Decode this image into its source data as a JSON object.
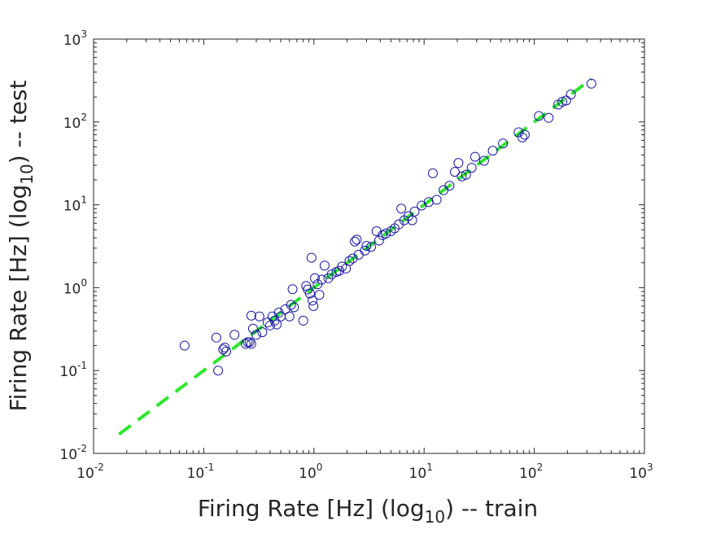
{
  "chart_data": {
    "type": "scatter",
    "xlabel": {
      "pre": "Firing Rate [Hz] (log",
      "sub": "10",
      "post": ") -- train"
    },
    "ylabel": {
      "pre": "Firing Rate [Hz] (log",
      "sub": "10",
      "post": ") -- test"
    },
    "x_scale": "log",
    "y_scale": "log",
    "xlim": [
      0.01,
      1000
    ],
    "ylim": [
      0.01,
      1000
    ],
    "x_ticks": [
      {
        "base": "10",
        "exp": "-2"
      },
      {
        "base": "10",
        "exp": "-1"
      },
      {
        "base": "10",
        "exp": "0"
      },
      {
        "base": "10",
        "exp": "1"
      },
      {
        "base": "10",
        "exp": "2"
      },
      {
        "base": "10",
        "exp": "3"
      }
    ],
    "y_ticks": [
      {
        "base": "10",
        "exp": "-2"
      },
      {
        "base": "10",
        "exp": "-1"
      },
      {
        "base": "10",
        "exp": "0"
      },
      {
        "base": "10",
        "exp": "1"
      },
      {
        "base": "10",
        "exp": "2"
      },
      {
        "base": "10",
        "exp": "3"
      }
    ],
    "grid": false,
    "colors": {
      "points": "#1a1aa0",
      "fit_line": "#2ee62e",
      "axis": "#262626"
    },
    "fit_line": {
      "style": "dashed",
      "x": [
        0.017,
        330
      ],
      "y": [
        0.017,
        330
      ]
    },
    "points": [
      [
        0.067,
        0.2
      ],
      [
        0.13,
        0.25
      ],
      [
        0.135,
        0.1
      ],
      [
        0.15,
        0.18
      ],
      [
        0.155,
        0.19
      ],
      [
        0.16,
        0.17
      ],
      [
        0.19,
        0.27
      ],
      [
        0.24,
        0.21
      ],
      [
        0.25,
        0.22
      ],
      [
        0.26,
        0.22
      ],
      [
        0.27,
        0.21
      ],
      [
        0.27,
        0.46
      ],
      [
        0.28,
        0.32
      ],
      [
        0.3,
        0.27
      ],
      [
        0.32,
        0.45
      ],
      [
        0.34,
        0.29
      ],
      [
        0.38,
        0.38
      ],
      [
        0.4,
        0.35
      ],
      [
        0.42,
        0.45
      ],
      [
        0.44,
        0.4
      ],
      [
        0.46,
        0.36
      ],
      [
        0.48,
        0.5
      ],
      [
        0.5,
        0.45
      ],
      [
        0.55,
        0.55
      ],
      [
        0.6,
        0.45
      ],
      [
        0.62,
        0.62
      ],
      [
        0.64,
        0.96
      ],
      [
        0.66,
        0.58
      ],
      [
        0.8,
        0.4
      ],
      [
        0.85,
        1.05
      ],
      [
        0.88,
        0.95
      ],
      [
        0.92,
        0.85
      ],
      [
        0.95,
        2.3
      ],
      [
        0.97,
        0.7
      ],
      [
        0.99,
        0.6
      ],
      [
        1.02,
        1.3
      ],
      [
        1.08,
        1.1
      ],
      [
        1.12,
        0.82
      ],
      [
        1.18,
        1.25
      ],
      [
        1.25,
        1.85
      ],
      [
        1.35,
        1.3
      ],
      [
        1.45,
        1.45
      ],
      [
        1.6,
        1.55
      ],
      [
        1.7,
        1.6
      ],
      [
        1.8,
        1.8
      ],
      [
        1.95,
        1.7
      ],
      [
        2.1,
        2.1
      ],
      [
        2.25,
        2.25
      ],
      [
        2.35,
        3.6
      ],
      [
        2.45,
        3.8
      ],
      [
        2.55,
        2.5
      ],
      [
        2.9,
        2.8
      ],
      [
        3.0,
        3.2
      ],
      [
        3.3,
        3.1
      ],
      [
        3.7,
        4.8
      ],
      [
        3.9,
        3.7
      ],
      [
        4.2,
        4.3
      ],
      [
        4.5,
        4.5
      ],
      [
        5.0,
        4.8
      ],
      [
        5.4,
        5.2
      ],
      [
        5.9,
        5.8
      ],
      [
        6.2,
        9.0
      ],
      [
        6.6,
        6.5
      ],
      [
        7.2,
        7.3
      ],
      [
        7.8,
        6.5
      ],
      [
        8.2,
        8.3
      ],
      [
        9.5,
        9.8
      ],
      [
        11.0,
        10.8
      ],
      [
        12.0,
        24.0
      ],
      [
        13.0,
        11.5
      ],
      [
        15.0,
        15.0
      ],
      [
        17.0,
        17.0
      ],
      [
        19.0,
        25.0
      ],
      [
        20.5,
        32.0
      ],
      [
        22.0,
        22.0
      ],
      [
        24.0,
        23.0
      ],
      [
        27.0,
        28.0
      ],
      [
        29.0,
        38.0
      ],
      [
        35.0,
        34.0
      ],
      [
        42.0,
        45.0
      ],
      [
        52.0,
        55.0
      ],
      [
        72.0,
        75.0
      ],
      [
        78.0,
        65.0
      ],
      [
        82.0,
        70.0
      ],
      [
        110.0,
        118.0
      ],
      [
        135.0,
        112.0
      ],
      [
        165.0,
        162.0
      ],
      [
        180.0,
        175.0
      ],
      [
        195.0,
        182.0
      ],
      [
        215.0,
        215.0
      ],
      [
        330.0,
        290.0
      ]
    ]
  }
}
